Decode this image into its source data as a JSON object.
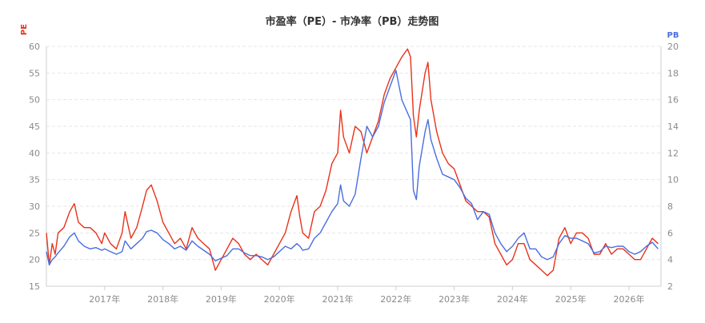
{
  "chart_data": {
    "type": "line",
    "title": "市盈率（PE）- 市净率（PB）走势图",
    "y_left_label": "PE",
    "y_right_label": "PB",
    "y_left_range": [
      15,
      60
    ],
    "y_right_range": [
      2,
      20
    ],
    "y_left_ticks": [
      "15",
      "20",
      "25",
      "30",
      "35",
      "40",
      "45",
      "50",
      "55",
      "60"
    ],
    "y_right_ticks": [
      "2",
      "4",
      "6",
      "8",
      "10",
      "12",
      "14",
      "16",
      "18",
      "20"
    ],
    "x_range": [
      2016.0,
      2026.55
    ],
    "x_ticks": [
      {
        "x": 2017.0,
        "label": "2017年"
      },
      {
        "x": 2018.0,
        "label": "2018年"
      },
      {
        "x": 2019.0,
        "label": "2019年"
      },
      {
        "x": 2020.0,
        "label": "2020年"
      },
      {
        "x": 2021.0,
        "label": "2021年"
      },
      {
        "x": 2022.0,
        "label": "2022年"
      },
      {
        "x": 2023.0,
        "label": "2023年"
      },
      {
        "x": 2024.0,
        "label": "2024年"
      },
      {
        "x": 2025.0,
        "label": "2025年"
      },
      {
        "x": 2026.0,
        "label": "2026年"
      }
    ],
    "grid": true,
    "colors": {
      "pe": "#e8321a",
      "pb": "#4a6ee0"
    },
    "series": [
      {
        "axis": "left",
        "values": [
          [
            2016.0,
            25
          ],
          [
            2016.05,
            19
          ],
          [
            2016.1,
            23
          ],
          [
            2016.15,
            21
          ],
          [
            2016.2,
            25
          ],
          [
            2016.3,
            26
          ],
          [
            2016.4,
            29
          ],
          [
            2016.48,
            30.5
          ],
          [
            2016.55,
            27
          ],
          [
            2016.65,
            26
          ],
          [
            2016.75,
            26
          ],
          [
            2016.85,
            25
          ],
          [
            2016.95,
            23
          ],
          [
            2017.0,
            25
          ],
          [
            2017.1,
            23
          ],
          [
            2017.2,
            22
          ],
          [
            2017.3,
            25
          ],
          [
            2017.35,
            29
          ],
          [
            2017.45,
            24
          ],
          [
            2017.55,
            26
          ],
          [
            2017.65,
            30
          ],
          [
            2017.72,
            33
          ],
          [
            2017.8,
            34
          ],
          [
            2017.9,
            31
          ],
          [
            2018.0,
            27
          ],
          [
            2018.1,
            25
          ],
          [
            2018.2,
            23
          ],
          [
            2018.3,
            24
          ],
          [
            2018.4,
            22
          ],
          [
            2018.5,
            26
          ],
          [
            2018.6,
            24
          ],
          [
            2018.7,
            23
          ],
          [
            2018.8,
            22
          ],
          [
            2018.9,
            18
          ],
          [
            2019.0,
            20
          ],
          [
            2019.1,
            22
          ],
          [
            2019.2,
            24
          ],
          [
            2019.3,
            23
          ],
          [
            2019.4,
            21
          ],
          [
            2019.5,
            20
          ],
          [
            2019.6,
            21
          ],
          [
            2019.7,
            20
          ],
          [
            2019.8,
            19
          ],
          [
            2019.9,
            21
          ],
          [
            2020.0,
            23
          ],
          [
            2020.1,
            25
          ],
          [
            2020.2,
            29
          ],
          [
            2020.3,
            32
          ],
          [
            2020.35,
            28
          ],
          [
            2020.4,
            25
          ],
          [
            2020.5,
            24
          ],
          [
            2020.6,
            29
          ],
          [
            2020.7,
            30
          ],
          [
            2020.8,
            33
          ],
          [
            2020.9,
            38
          ],
          [
            2021.0,
            40
          ],
          [
            2021.05,
            48
          ],
          [
            2021.1,
            43
          ],
          [
            2021.2,
            40
          ],
          [
            2021.3,
            45
          ],
          [
            2021.4,
            44
          ],
          [
            2021.5,
            40
          ],
          [
            2021.6,
            43
          ],
          [
            2021.7,
            46
          ],
          [
            2021.8,
            51
          ],
          [
            2021.9,
            54
          ],
          [
            2022.0,
            56
          ],
          [
            2022.1,
            58
          ],
          [
            2022.2,
            59.5
          ],
          [
            2022.25,
            58
          ],
          [
            2022.3,
            47
          ],
          [
            2022.35,
            43
          ],
          [
            2022.4,
            48
          ],
          [
            2022.5,
            55
          ],
          [
            2022.55,
            57
          ],
          [
            2022.6,
            50
          ],
          [
            2022.7,
            44
          ],
          [
            2022.8,
            40
          ],
          [
            2022.9,
            38
          ],
          [
            2023.0,
            37
          ],
          [
            2023.1,
            34
          ],
          [
            2023.2,
            31
          ],
          [
            2023.3,
            30
          ],
          [
            2023.4,
            29
          ],
          [
            2023.5,
            29
          ],
          [
            2023.6,
            28
          ],
          [
            2023.7,
            23
          ],
          [
            2023.8,
            21
          ],
          [
            2023.9,
            19
          ],
          [
            2024.0,
            20
          ],
          [
            2024.1,
            23
          ],
          [
            2024.2,
            23
          ],
          [
            2024.3,
            20
          ],
          [
            2024.4,
            19
          ],
          [
            2024.5,
            18
          ],
          [
            2024.6,
            17
          ],
          [
            2024.7,
            18
          ],
          [
            2024.8,
            24
          ],
          [
            2024.9,
            26
          ],
          [
            2025.0,
            23
          ],
          [
            2025.1,
            25
          ],
          [
            2025.2,
            25
          ],
          [
            2025.3,
            24
          ],
          [
            2025.4,
            21
          ],
          [
            2025.5,
            21
          ],
          [
            2025.6,
            23
          ],
          [
            2025.7,
            21
          ],
          [
            2025.8,
            22
          ],
          [
            2025.9,
            22
          ],
          [
            2026.0,
            21
          ],
          [
            2026.1,
            20
          ],
          [
            2026.2,
            20
          ],
          [
            2026.3,
            22
          ],
          [
            2026.4,
            24
          ],
          [
            2026.5,
            23
          ]
        ]
      },
      {
        "axis": "right",
        "values": [
          [
            2016.0,
            4.6
          ],
          [
            2016.05,
            3.6
          ],
          [
            2016.1,
            4.0
          ],
          [
            2016.15,
            4.2
          ],
          [
            2016.2,
            4.5
          ],
          [
            2016.3,
            5.0
          ],
          [
            2016.4,
            5.7
          ],
          [
            2016.48,
            6.0
          ],
          [
            2016.55,
            5.4
          ],
          [
            2016.65,
            5.0
          ],
          [
            2016.75,
            4.8
          ],
          [
            2016.85,
            4.9
          ],
          [
            2016.95,
            4.7
          ],
          [
            2017.0,
            4.8
          ],
          [
            2017.1,
            4.6
          ],
          [
            2017.2,
            4.4
          ],
          [
            2017.3,
            4.6
          ],
          [
            2017.35,
            5.4
          ],
          [
            2017.45,
            4.8
          ],
          [
            2017.55,
            5.2
          ],
          [
            2017.65,
            5.6
          ],
          [
            2017.72,
            6.1
          ],
          [
            2017.8,
            6.2
          ],
          [
            2017.9,
            6.0
          ],
          [
            2018.0,
            5.5
          ],
          [
            2018.1,
            5.2
          ],
          [
            2018.2,
            4.8
          ],
          [
            2018.3,
            5.0
          ],
          [
            2018.4,
            4.7
          ],
          [
            2018.5,
            5.4
          ],
          [
            2018.6,
            5.0
          ],
          [
            2018.7,
            4.7
          ],
          [
            2018.8,
            4.4
          ],
          [
            2018.9,
            3.9
          ],
          [
            2019.0,
            4.1
          ],
          [
            2019.1,
            4.3
          ],
          [
            2019.2,
            4.8
          ],
          [
            2019.3,
            4.8
          ],
          [
            2019.4,
            4.5
          ],
          [
            2019.5,
            4.3
          ],
          [
            2019.6,
            4.3
          ],
          [
            2019.7,
            4.2
          ],
          [
            2019.8,
            4.0
          ],
          [
            2019.9,
            4.2
          ],
          [
            2020.0,
            4.6
          ],
          [
            2020.1,
            5.0
          ],
          [
            2020.2,
            4.8
          ],
          [
            2020.3,
            5.2
          ],
          [
            2020.35,
            5.0
          ],
          [
            2020.4,
            4.7
          ],
          [
            2020.5,
            4.8
          ],
          [
            2020.6,
            5.6
          ],
          [
            2020.7,
            6.0
          ],
          [
            2020.8,
            6.8
          ],
          [
            2020.9,
            7.6
          ],
          [
            2021.0,
            8.2
          ],
          [
            2021.05,
            9.6
          ],
          [
            2021.1,
            8.4
          ],
          [
            2021.2,
            8.0
          ],
          [
            2021.3,
            8.9
          ],
          [
            2021.4,
            11.6
          ],
          [
            2021.5,
            14.0
          ],
          [
            2021.6,
            13.2
          ],
          [
            2021.7,
            14.0
          ],
          [
            2021.8,
            15.8
          ],
          [
            2021.9,
            17.0
          ],
          [
            2022.0,
            18.2
          ],
          [
            2022.1,
            16.0
          ],
          [
            2022.2,
            15.0
          ],
          [
            2022.25,
            14.5
          ],
          [
            2022.3,
            9.2
          ],
          [
            2022.35,
            8.5
          ],
          [
            2022.4,
            11.0
          ],
          [
            2022.5,
            13.6
          ],
          [
            2022.55,
            14.5
          ],
          [
            2022.6,
            13.0
          ],
          [
            2022.7,
            11.6
          ],
          [
            2022.8,
            10.4
          ],
          [
            2022.9,
            10.2
          ],
          [
            2023.0,
            10.0
          ],
          [
            2023.1,
            9.4
          ],
          [
            2023.2,
            8.6
          ],
          [
            2023.3,
            8.2
          ],
          [
            2023.4,
            7.0
          ],
          [
            2023.5,
            7.6
          ],
          [
            2023.6,
            7.4
          ],
          [
            2023.7,
            6.0
          ],
          [
            2023.8,
            5.2
          ],
          [
            2023.9,
            4.6
          ],
          [
            2024.0,
            5.0
          ],
          [
            2024.1,
            5.6
          ],
          [
            2024.2,
            6.0
          ],
          [
            2024.3,
            4.8
          ],
          [
            2024.4,
            4.8
          ],
          [
            2024.5,
            4.2
          ],
          [
            2024.6,
            4.0
          ],
          [
            2024.7,
            4.2
          ],
          [
            2024.8,
            5.2
          ],
          [
            2024.9,
            5.8
          ],
          [
            2025.0,
            5.6
          ],
          [
            2025.1,
            5.6
          ],
          [
            2025.2,
            5.4
          ],
          [
            2025.3,
            5.2
          ],
          [
            2025.4,
            4.5
          ],
          [
            2025.5,
            4.6
          ],
          [
            2025.6,
            5.0
          ],
          [
            2025.7,
            4.9
          ],
          [
            2025.8,
            5.0
          ],
          [
            2025.9,
            5.0
          ],
          [
            2026.0,
            4.6
          ],
          [
            2026.1,
            4.4
          ],
          [
            2026.2,
            4.6
          ],
          [
            2026.3,
            5.0
          ],
          [
            2026.4,
            5.3
          ],
          [
            2026.5,
            4.8
          ]
        ]
      }
    ]
  }
}
